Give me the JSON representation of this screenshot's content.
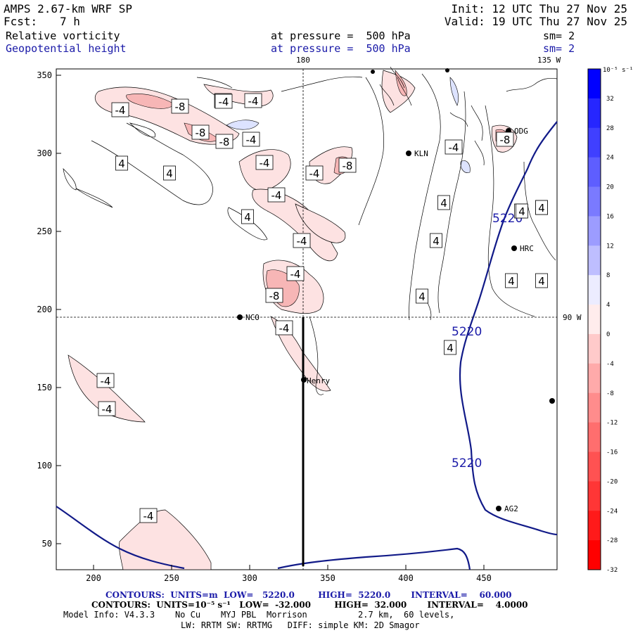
{
  "header": {
    "model": "AMPS 2.67-km WRF SP",
    "fcst_label": "Fcst:",
    "fcst_value": "7 h",
    "init": "Init: 12 UTC Thu 27 Nov 25",
    "valid": "Valid: 19 UTC Thu 27 Nov 25",
    "field1": "Relative vorticity",
    "field2": "Geopotential height",
    "pressure1": "at pressure =  500 hPa",
    "pressure2": "at pressure =  500 hPa",
    "sm1": "sm= 2",
    "sm2": "sm= 2",
    "lon_180": "180",
    "lon_135w": "135 W",
    "lat_90w": "90 W"
  },
  "axes": {
    "x_ticks": [
      "200",
      "250",
      "300",
      "350",
      "400",
      "450"
    ],
    "y_ticks": [
      "350",
      "300",
      "250",
      "200",
      "150",
      "100",
      "50"
    ]
  },
  "colorbar": {
    "unit_label": "10⁻⁵ s⁻¹",
    "levels": [
      "32",
      "28",
      "24",
      "20",
      "16",
      "12",
      "8",
      "4",
      "0",
      "-4",
      "-8",
      "-12",
      "-16",
      "-20",
      "-24",
      "-28",
      "-32"
    ],
    "colors": [
      "#0000ff",
      "#2626ff",
      "#4040ff",
      "#5e5eff",
      "#7a7aff",
      "#9c9cff",
      "#bebeff",
      "#ececff",
      "#ffecec",
      "#ffcaca",
      "#ffaaaa",
      "#ff8c8c",
      "#ff6e6e",
      "#ff5252",
      "#ff3636",
      "#ff1a1a",
      "#ff0000"
    ]
  },
  "stations": [
    {
      "name": "NCO"
    },
    {
      "name": "Henry"
    },
    {
      "name": "KLN"
    },
    {
      "name": "HRC"
    },
    {
      "name": "AG2"
    },
    {
      "name": "ODG"
    }
  ],
  "height_labels": [
    "5220",
    "5220",
    "5220"
  ],
  "vort_labels": [
    "-4",
    "-4",
    "-8",
    "-4",
    "-4",
    "-8",
    "-8",
    "-4",
    "4",
    "4",
    "-4",
    "-4",
    "-8",
    "-4",
    "4",
    "-4",
    "-4",
    "-8",
    "-4",
    "-4",
    "-4",
    "-4",
    "4",
    "4",
    "4",
    "4",
    "4",
    "4",
    "4",
    "4",
    "-4",
    "4",
    "4",
    "-8"
  ],
  "footer": {
    "line1": "CONTOURS:  UNITS=m  LOW=   5220.0        HIGH=  5220.0       INTERVAL=    60.000",
    "line2": "CONTOURS:  UNITS=10⁻⁵ s⁻¹   LOW=  -32.000        HIGH=  32.000       INTERVAL=    4.0000",
    "line3": "Model Info: V4.3.3    No Cu    MYJ PBL  Morrison          2.7 km,  60 levels,",
    "line4": "LW: RRTM SW: RRTMG   DIFF: simple KM: 2D Smagor"
  }
}
